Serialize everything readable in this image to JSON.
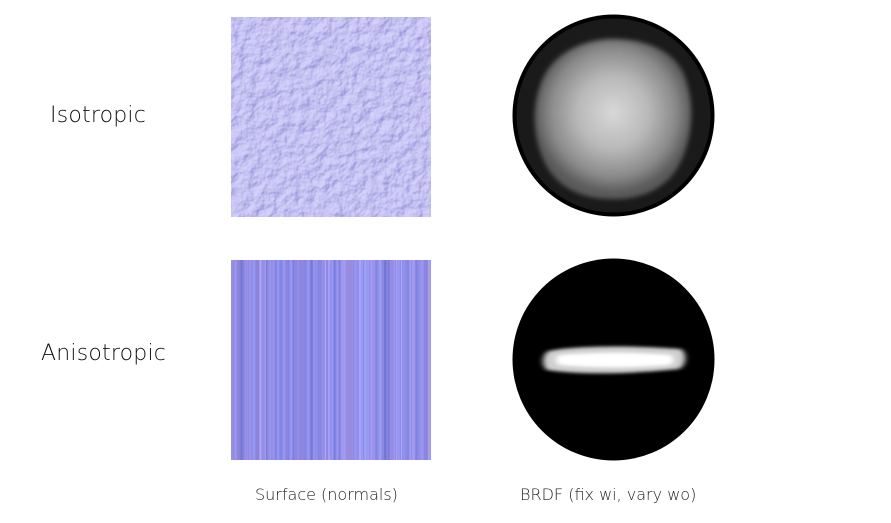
{
  "rows": {
    "isotropic": {
      "label": "Isotropic"
    },
    "anisotropic": {
      "label": "Anisotropic"
    }
  },
  "columns": {
    "surface": {
      "label": "Surface (normals)"
    },
    "brdf": {
      "label": "BRDF (fix wi, vary wo)"
    }
  },
  "colors": {
    "normal_map_base": "#8a8aea",
    "normal_map_highlight": "#b6b0ff",
    "normal_map_shadow": "#6e72cc",
    "stripe_alt": "#a58fd8",
    "brdf_disc": "#000000",
    "brdf_lobe": "#ffffff"
  },
  "icons": {
    "isotropic_surface": "bumpy-normal-map",
    "anisotropic_surface": "vertical-stripe-normal-map",
    "isotropic_brdf": "circular-lobe",
    "anisotropic_brdf": "horizontal-streak-lobe"
  }
}
